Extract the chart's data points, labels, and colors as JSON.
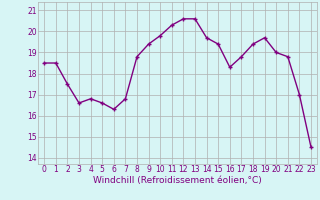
{
  "hours": [
    0,
    1,
    2,
    3,
    4,
    5,
    6,
    7,
    8,
    9,
    10,
    11,
    12,
    13,
    14,
    15,
    16,
    17,
    18,
    19,
    20,
    21,
    22,
    23
  ],
  "values": [
    18.5,
    18.5,
    17.5,
    16.6,
    16.8,
    16.6,
    16.3,
    16.8,
    18.8,
    19.4,
    19.8,
    20.3,
    20.6,
    20.6,
    19.7,
    19.4,
    18.3,
    18.8,
    19.4,
    19.7,
    19.0,
    18.8,
    17.0,
    14.5
  ],
  "line_color": "#800080",
  "marker": "+",
  "bg_color": "#d7f5f5",
  "grid_color": "#b0b0b0",
  "xlabel": "Windchill (Refroidissement éolien,°C)",
  "ylabel_ticks": [
    14,
    15,
    16,
    17,
    18,
    19,
    20,
    21
  ],
  "xlabel_ticks": [
    0,
    1,
    2,
    3,
    4,
    5,
    6,
    7,
    8,
    9,
    10,
    11,
    12,
    13,
    14,
    15,
    16,
    17,
    18,
    19,
    20,
    21,
    22,
    23
  ],
  "ylim": [
    13.7,
    21.4
  ],
  "xlim": [
    -0.5,
    23.5
  ],
  "tick_fontsize": 5.5,
  "xlabel_fontsize": 6.5,
  "line_width": 1.0,
  "marker_size": 3.5,
  "marker_ew": 1.0
}
